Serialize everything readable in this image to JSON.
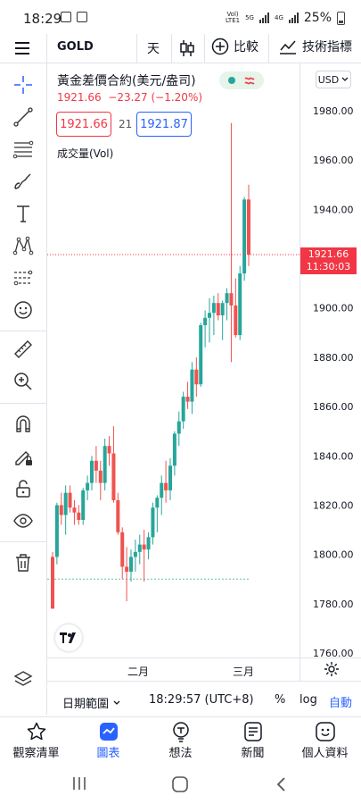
{
  "status_bar": {
    "time": "18:29",
    "net_label_top": "Vol)",
    "net_label_bottom": "LTE1",
    "net_5g": "5G",
    "net_4g": "4G",
    "battery": "25%"
  },
  "toolbar": {
    "symbol": "GOLD",
    "interval": "天",
    "compare_label": "比較",
    "indicators_label": "技術指標"
  },
  "header": {
    "title": "黃金差價合約(美元/盎司)",
    "last_price": "1921.66",
    "change": "−23.27 (−1.20%)",
    "currency": "USD",
    "bid": "1921.66",
    "spread": "21",
    "ask": "1921.87",
    "volume_label": "成交量(Vol)"
  },
  "price_axis": {
    "ticks": [
      "1980.00",
      "1960.00",
      "1940.00",
      "1920.00",
      "1900.00",
      "1880.00",
      "1860.00",
      "1840.00",
      "1820.00",
      "1800.00",
      "1780.00",
      "1760.00"
    ],
    "current_price": "1921.66",
    "countdown": "11:30:03"
  },
  "time_axis": {
    "labels": [
      "二月",
      "三月"
    ]
  },
  "bottom_bar": {
    "date_range": "日期範圍",
    "clock": "18:29:57 (UTC+8)",
    "percent": "%",
    "log": "log",
    "auto": "自動"
  },
  "nav": {
    "items": [
      {
        "label": "觀察清單"
      },
      {
        "label": "圖表"
      },
      {
        "label": "想法"
      },
      {
        "label": "新聞"
      },
      {
        "label": "個人資料"
      }
    ]
  },
  "colors": {
    "up": "#26a69a",
    "down": "#ef5350",
    "accent": "#2962ff",
    "current": "#f23645"
  },
  "chart_data": {
    "type": "candlestick",
    "ylim": [
      1760,
      1990
    ],
    "y_ticks": [
      1980,
      1960,
      1940,
      1920,
      1900,
      1880,
      1860,
      1840,
      1820,
      1800,
      1780,
      1760
    ],
    "x_labels": [
      "二月",
      "三月"
    ],
    "candles": [
      [
        1799,
        1801,
        1778,
        1778
      ],
      [
        1799,
        1821,
        1796,
        1820
      ],
      [
        1820,
        1825,
        1812,
        1816
      ],
      [
        1816,
        1828,
        1808,
        1825
      ],
      [
        1825,
        1828,
        1817,
        1819
      ],
      [
        1819,
        1822,
        1812,
        1817
      ],
      [
        1817,
        1820,
        1812,
        1814
      ],
      [
        1814,
        1827,
        1812,
        1826
      ],
      [
        1826,
        1832,
        1822,
        1829
      ],
      [
        1829,
        1840,
        1826,
        1838
      ],
      [
        1838,
        1844,
        1829,
        1834
      ],
      [
        1834,
        1838,
        1822,
        1829
      ],
      [
        1829,
        1847,
        1826,
        1844
      ],
      [
        1844,
        1848,
        1836,
        1841
      ],
      [
        1841,
        1852,
        1821,
        1822
      ],
      [
        1822,
        1825,
        1808,
        1809
      ],
      [
        1809,
        1811,
        1790,
        1795
      ],
      [
        1795,
        1803,
        1781,
        1793
      ],
      [
        1793,
        1802,
        1789,
        1799
      ],
      [
        1799,
        1806,
        1793,
        1801
      ],
      [
        1801,
        1808,
        1796,
        1804
      ],
      [
        1804,
        1810,
        1789,
        1802
      ],
      [
        1802,
        1809,
        1798,
        1807
      ],
      [
        1807,
        1821,
        1804,
        1819
      ],
      [
        1819,
        1824,
        1809,
        1823
      ],
      [
        1823,
        1832,
        1816,
        1829
      ],
      [
        1829,
        1838,
        1821,
        1826
      ],
      [
        1826,
        1839,
        1822,
        1836
      ],
      [
        1836,
        1850,
        1832,
        1849
      ],
      [
        1849,
        1858,
        1844,
        1854
      ],
      [
        1854,
        1866,
        1851,
        1864
      ],
      [
        1864,
        1870,
        1859,
        1862
      ],
      [
        1862,
        1878,
        1857,
        1875
      ],
      [
        1875,
        1880,
        1864,
        1869
      ],
      [
        1869,
        1894,
        1868,
        1893
      ],
      [
        1893,
        1899,
        1884,
        1896
      ],
      [
        1896,
        1904,
        1886,
        1898
      ],
      [
        1898,
        1905,
        1889,
        1902
      ],
      [
        1902,
        1906,
        1895,
        1897
      ],
      [
        1897,
        1903,
        1887,
        1902
      ],
      [
        1902,
        1908,
        1895,
        1906
      ],
      [
        1906,
        1975,
        1878,
        1901
      ],
      [
        1901,
        1912,
        1888,
        1889
      ],
      [
        1889,
        1917,
        1887,
        1914
      ],
      [
        1914,
        1945,
        1911,
        1944
      ],
      [
        1944,
        1950,
        1917,
        1921.66
      ]
    ]
  }
}
